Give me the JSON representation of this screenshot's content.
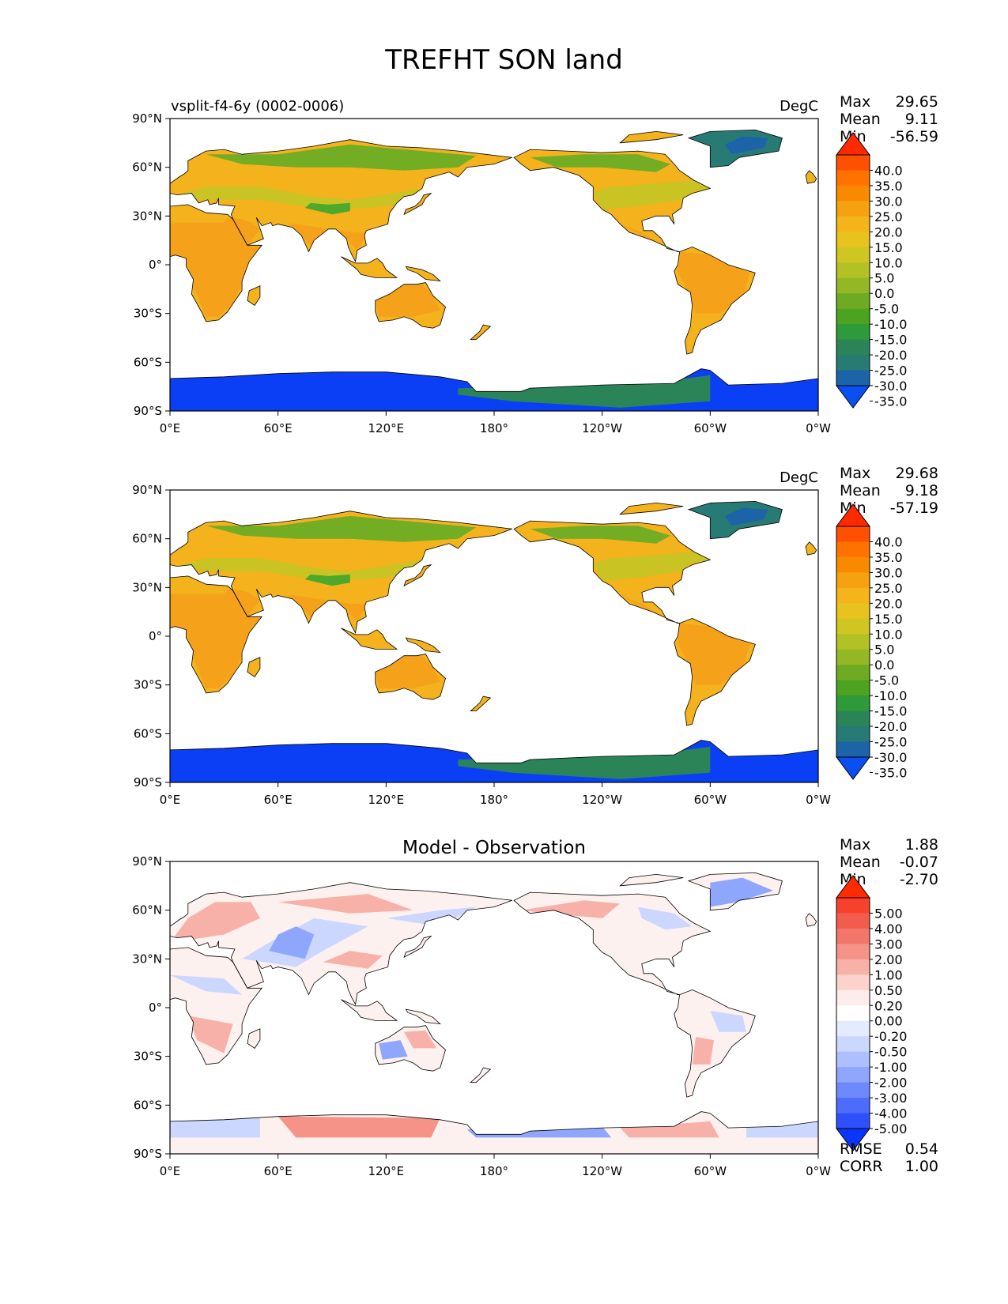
{
  "figure": {
    "title": "TREFHT SON land"
  },
  "map_axes": {
    "lat_labels": [
      "90°N",
      "60°N",
      "30°N",
      "0°",
      "30°S",
      "60°S",
      "90°S"
    ],
    "lon_labels": [
      "0°E",
      "60°E",
      "120°E",
      "180°",
      "120°W",
      "60°W",
      "0°W"
    ]
  },
  "panels": [
    {
      "left_title": "vsplit-f4-6y (0002-0006)",
      "center_title": "",
      "units": "DegC",
      "stats": {
        "max_label": "Max",
        "max": "29.65",
        "mean_label": "Mean",
        "mean": "9.11",
        "min_label": "Min",
        "min": "-56.59"
      },
      "colorbar": {
        "labels": [
          "40.0",
          "35.0",
          "30.0",
          "25.0",
          "20.0",
          "15.0",
          "10.0",
          "5.0",
          "0.0",
          "-5.0",
          "-10.0",
          "-15.0",
          "-20.0",
          "-25.0",
          "-30.0",
          "-35.0"
        ],
        "colors": [
          "#ff2a00",
          "#ff4f00",
          "#ff7200",
          "#f98a00",
          "#f5a110",
          "#f5b51a",
          "#e8c21d",
          "#cfc621",
          "#b2c124",
          "#93b725",
          "#6fab22",
          "#4ba31f",
          "#2f9a3a",
          "#2a8458",
          "#287a74",
          "#1d63a8",
          "#0b4ff0"
        ]
      }
    },
    {
      "left_title": "",
      "center_title": "",
      "units": "DegC",
      "stats": {
        "max_label": "Max",
        "max": "29.68",
        "mean_label": "Mean",
        "mean": "9.18",
        "min_label": "Min",
        "min": "-57.19"
      },
      "colorbar": {
        "labels": [
          "40.0",
          "35.0",
          "30.0",
          "25.0",
          "20.0",
          "15.0",
          "10.0",
          "5.0",
          "0.0",
          "-5.0",
          "-10.0",
          "-15.0",
          "-20.0",
          "-25.0",
          "-30.0",
          "-35.0"
        ],
        "colors": [
          "#ff2a00",
          "#ff4f00",
          "#ff7200",
          "#f98a00",
          "#f5a110",
          "#f5b51a",
          "#e8c21d",
          "#cfc621",
          "#b2c124",
          "#93b725",
          "#6fab22",
          "#4ba31f",
          "#2f9a3a",
          "#2a8458",
          "#287a74",
          "#1d63a8",
          "#0b4ff0"
        ]
      }
    },
    {
      "left_title": "",
      "center_title": "Model - Observation",
      "units": "",
      "stats": {
        "max_label": "Max",
        "max": "1.88",
        "mean_label": "Mean",
        "mean": "-0.07",
        "min_label": "Min",
        "min": "-2.70"
      },
      "colorbar": {
        "labels": [
          "5.00",
          "4.00",
          "3.00",
          "2.00",
          "1.00",
          "0.50",
          "0.20",
          "0.00",
          "-0.20",
          "-0.50",
          "-1.00",
          "-2.00",
          "-3.00",
          "-4.00",
          "-5.00"
        ],
        "colors": [
          "#ff2a00",
          "#f7412d",
          "#f25c4c",
          "#f2766a",
          "#f59389",
          "#f8b1a9",
          "#fbd2cc",
          "#fdecea",
          "#ffffff",
          "#e4ebff",
          "#cbd7ff",
          "#adbfff",
          "#8ea6fb",
          "#6e89fb",
          "#4e6cfb",
          "#2e50fb",
          "#0b35fb"
        ]
      },
      "metrics": {
        "rmse_label": "RMSE",
        "rmse": "0.54",
        "corr_label": "CORR",
        "corr": "1.00"
      }
    }
  ],
  "map_colors": {
    "field": {
      "tropics": "#f6a11a",
      "subtropics": "#f4b21c",
      "midlat": "#c9c323",
      "boreal": "#72ad24",
      "tibet": "#4ea82a",
      "greenland": "#287a74",
      "greenland_core": "#1d63a8",
      "antarctica": "#0b3ff5",
      "antarctica_coast": "#2a8458"
    },
    "diff": {
      "neutral": "#fdf1ef",
      "warm": "#f8b1a9",
      "warm_strong": "#f59389",
      "cool": "#cbd7ff",
      "cool_strong": "#8ea6fb"
    }
  }
}
